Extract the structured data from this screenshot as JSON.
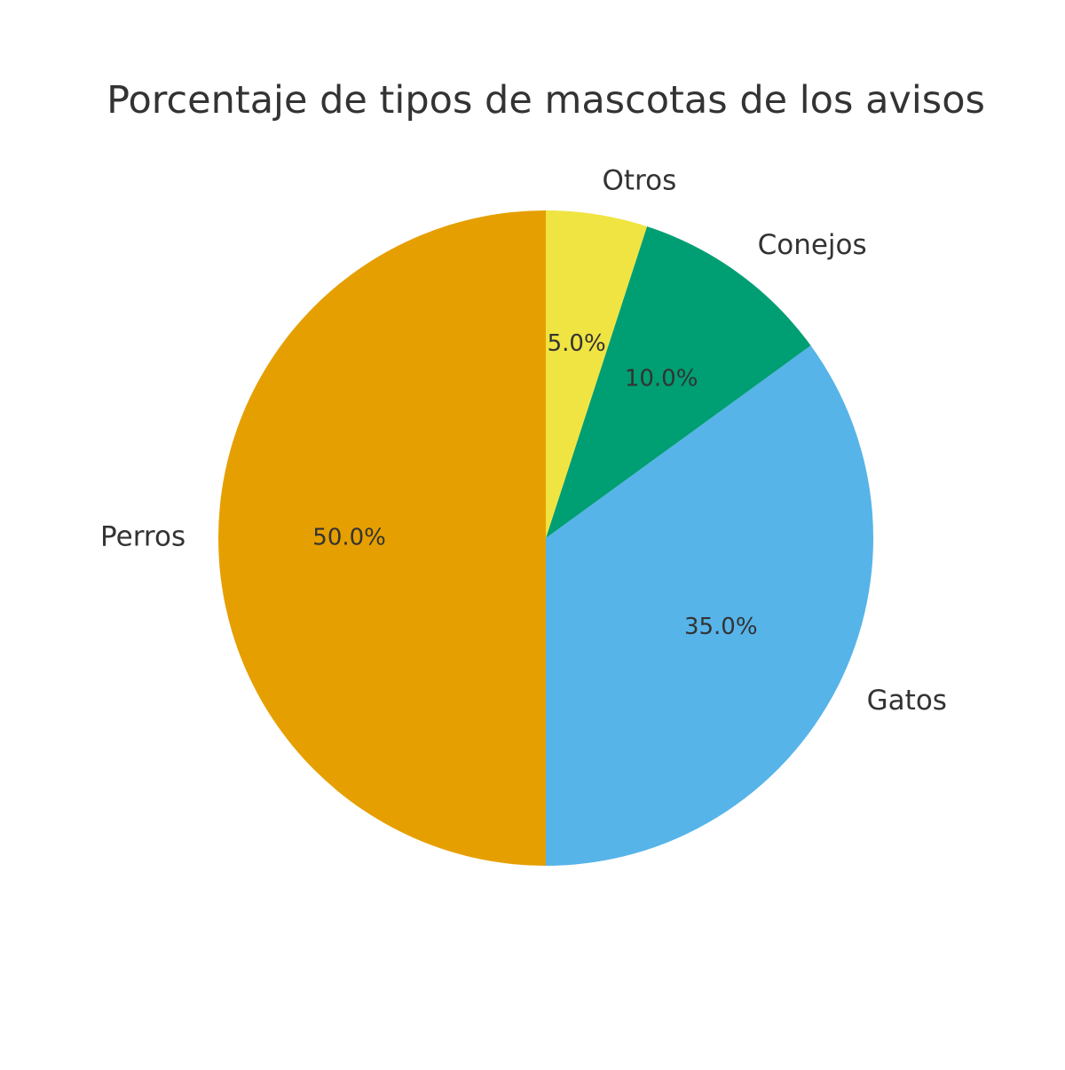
{
  "chart_data": {
    "type": "pie",
    "title": "Porcentaje de tipos de mascotas de los avisos",
    "slices": [
      {
        "label": "Perros",
        "value": 50.0,
        "pct_label": "50.0%",
        "color": "#E69F00"
      },
      {
        "label": "Gatos",
        "value": 35.0,
        "pct_label": "35.0%",
        "color": "#56B4E9"
      },
      {
        "label": "Conejos",
        "value": 10.0,
        "pct_label": "10.0%",
        "color": "#009E73"
      },
      {
        "label": "Otros",
        "value": 5.0,
        "pct_label": "5.0%",
        "color": "#F0E442"
      }
    ],
    "start_angle_deg": 90,
    "direction": "counterclockwise",
    "legend": "none"
  }
}
